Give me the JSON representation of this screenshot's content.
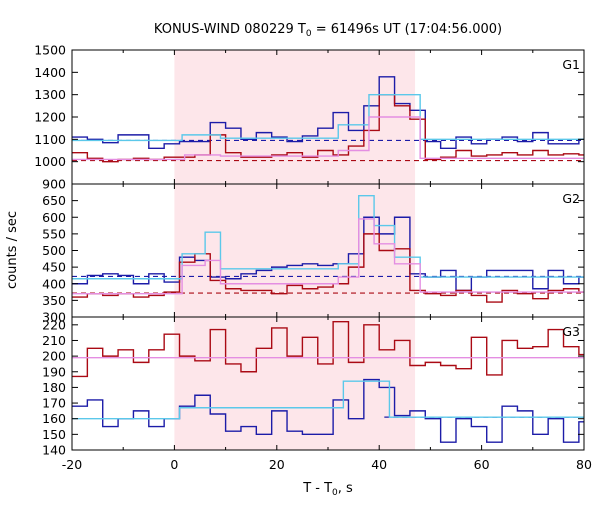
{
  "chart_data": {
    "type": "line",
    "title": "KONUS-WIND 080229 T",
    "title_sub": "0",
    "title_rest": " = 61496s UT (17:04:56.000)",
    "xlabel": "T - T",
    "xlabel_sub": "0",
    "xlabel_rest": ", s",
    "ylabel": "counts / sec",
    "xlim": [
      -20,
      80
    ],
    "xticks": [
      "-20",
      "0",
      "20",
      "40",
      "60",
      "80"
    ],
    "shaded_interval": [
      0,
      47
    ],
    "colors": {
      "series_a": "#1c1ca8",
      "series_b": "#aa0a14",
      "model_a": "#5bc8ea",
      "model_b": "#e48ee2",
      "background_a": "#1c1ca8",
      "background_b": "#aa0a14",
      "shade": "#fde6ea"
    },
    "panels": [
      {
        "label": "G1",
        "ylim": [
          900,
          1500
        ],
        "yticks": [
          900,
          1000,
          1100,
          1200,
          1300,
          1400,
          1500
        ],
        "series": [
          {
            "color_key": "series_a",
            "x": [
              -20,
              -17,
              -14,
              -11,
              -8,
              -5,
              -2,
              1,
              4,
              7,
              10,
              13,
              16,
              19,
              22,
              25,
              28,
              31,
              34,
              37,
              40,
              43,
              46,
              49,
              52,
              55,
              58,
              61,
              64,
              67,
              70,
              73,
              76,
              79,
              80
            ],
            "values": [
              1110,
              1100,
              1085,
              1120,
              1120,
              1060,
              1080,
              1090,
              1090,
              1175,
              1150,
              1100,
              1130,
              1110,
              1090,
              1115,
              1150,
              1220,
              1140,
              1250,
              1380,
              1260,
              1230,
              1090,
              1060,
              1110,
              1080,
              1100,
              1110,
              1090,
              1130,
              1080,
              1080,
              1100,
              1100
            ]
          },
          {
            "color_key": "series_b",
            "x": [
              -20,
              -17,
              -14,
              -11,
              -8,
              -5,
              -2,
              1,
              4,
              7,
              10,
              13,
              16,
              19,
              22,
              25,
              28,
              31,
              34,
              37,
              40,
              43,
              46,
              49,
              52,
              55,
              58,
              61,
              64,
              67,
              70,
              73,
              76,
              79,
              80
            ],
            "values": [
              1040,
              1015,
              1000,
              1010,
              1015,
              1010,
              1020,
              1020,
              1030,
              1120,
              1040,
              1020,
              1020,
              1030,
              1040,
              1020,
              1050,
              1030,
              1070,
              1140,
              1300,
              1250,
              1190,
              1010,
              1020,
              1050,
              1025,
              1030,
              1040,
              1030,
              1050,
              1030,
              1035,
              1030,
              1030
            ]
          },
          {
            "color_key": "model_a",
            "x": [
              -20,
              0.5,
              1.5,
              7,
              9,
              31,
              32,
              36,
              38,
              47,
              48,
              80
            ],
            "values": [
              1095,
              1095,
              1120,
              1120,
              1105,
              1105,
              1165,
              1165,
              1300,
              1300,
              1100,
              1100
            ]
          },
          {
            "color_key": "model_b",
            "x": [
              -20,
              0.5,
              2,
              7,
              9,
              31,
              32,
              36,
              38,
              47,
              48,
              80
            ],
            "values": [
              1010,
              1010,
              1030,
              1030,
              1025,
              1025,
              1050,
              1050,
              1200,
              1200,
              1015,
              1015
            ]
          }
        ],
        "backgrounds": [
          {
            "color_key": "background_a",
            "value": 1095,
            "x": [
              -20,
              80
            ]
          },
          {
            "color_key": "background_b",
            "value": 1005,
            "x": [
              -20,
              80
            ]
          }
        ]
      },
      {
        "label": "G2",
        "ylim": [
          300,
          700
        ],
        "yticks": [
          300,
          350,
          400,
          450,
          500,
          550,
          600,
          650
        ],
        "series": [
          {
            "color_key": "series_a",
            "x": [
              -20,
              -17,
              -14,
              -11,
              -8,
              -5,
              -2,
              1,
              4,
              7,
              10,
              13,
              16,
              19,
              22,
              25,
              28,
              31,
              34,
              37,
              40,
              43,
              46,
              49,
              52,
              55,
              58,
              61,
              64,
              67,
              70,
              73,
              76,
              79,
              80
            ],
            "values": [
              400,
              425,
              430,
              425,
              400,
              430,
              405,
              480,
              470,
              420,
              415,
              430,
              440,
              450,
              455,
              460,
              455,
              460,
              490,
              600,
              550,
              600,
              430,
              420,
              440,
              380,
              420,
              440,
              440,
              440,
              385,
              440,
              400,
              420,
              420
            ]
          },
          {
            "color_key": "series_b",
            "x": [
              -20,
              -17,
              -14,
              -11,
              -8,
              -5,
              -2,
              1,
              4,
              7,
              10,
              13,
              16,
              19,
              22,
              25,
              28,
              31,
              34,
              37,
              40,
              43,
              46,
              49,
              52,
              55,
              58,
              61,
              64,
              67,
              70,
              73,
              76,
              79,
              80
            ],
            "values": [
              360,
              370,
              365,
              370,
              360,
              365,
              375,
              465,
              490,
              410,
              385,
              380,
              380,
              370,
              395,
              385,
              390,
              400,
              450,
              550,
              500,
              505,
              380,
              370,
              365,
              380,
              365,
              345,
              380,
              370,
              355,
              380,
              385,
              375,
              375
            ]
          },
          {
            "color_key": "model_a",
            "x": [
              -20,
              0.5,
              1.5,
              6,
              9,
              31,
              32,
              35,
              36,
              38,
              39,
              42,
              43,
              47,
              48,
              80
            ],
            "values": [
              415,
              415,
              490,
              555,
              445,
              445,
              460,
              460,
              665,
              665,
              575,
              575,
              480,
              480,
              420,
              420
            ]
          },
          {
            "color_key": "model_b",
            "x": [
              -20,
              0.5,
              1.5,
              6,
              9,
              31,
              32,
              35,
              36,
              38,
              39,
              42,
              43,
              47,
              48,
              80
            ],
            "values": [
              370,
              370,
              455,
              470,
              400,
              400,
              420,
              420,
              595,
              595,
              520,
              520,
              460,
              460,
              375,
              375
            ]
          }
        ],
        "backgrounds": [
          {
            "color_key": "background_a",
            "value": 422,
            "x": [
              -20,
              80
            ]
          },
          {
            "color_key": "background_b",
            "value": 372,
            "x": [
              -20,
              80
            ]
          }
        ]
      },
      {
        "label": "G3",
        "ylim": [
          140,
          225
        ],
        "yticks": [
          140,
          150,
          160,
          170,
          180,
          190,
          200,
          210,
          220
        ],
        "series": [
          {
            "color_key": "series_a",
            "x": [
              -20,
              -17,
              -14,
              -11,
              -8,
              -5,
              -2,
              1,
              4,
              7,
              10,
              13,
              16,
              19,
              22,
              25,
              28,
              31,
              34,
              37,
              40,
              43,
              46,
              49,
              52,
              55,
              58,
              61,
              64,
              67,
              70,
              73,
              76,
              79,
              80
            ],
            "values": [
              168,
              172,
              155,
              160,
              165,
              155,
              160,
              168,
              175,
              163,
              152,
              155,
              150,
              165,
              152,
              150,
              150,
              172,
              160,
              185,
              180,
              162,
              165,
              160,
              145,
              160,
              155,
              145,
              168,
              165,
              150,
              160,
              145,
              158,
              158
            ]
          },
          {
            "color_key": "series_b",
            "x": [
              -20,
              -17,
              -14,
              -11,
              -8,
              -5,
              -2,
              1,
              4,
              7,
              10,
              13,
              16,
              19,
              22,
              25,
              28,
              31,
              34,
              37,
              40,
              43,
              46,
              49,
              52,
              55,
              58,
              61,
              64,
              67,
              70,
              73,
              76,
              79,
              80
            ],
            "values": [
              187,
              205,
              200,
              204,
              196,
              204,
              214,
              200,
              197,
              217,
              195,
              190,
              205,
              218,
              200,
              212,
              195,
              222,
              196,
              220,
              204,
              210,
              194,
              196,
              194,
              192,
              212,
              188,
              210,
              205,
              206,
              217,
              206,
              201,
              201
            ]
          },
          {
            "color_key": "model_a",
            "x": [
              -20,
              0.5,
              1,
              29,
              30,
              33,
              34,
              41,
              42,
              80
            ],
            "values": [
              160,
              160,
              167,
              167,
              167,
              184,
              184,
              184,
              161,
              161
            ]
          },
          {
            "color_key": "model_b",
            "x": [
              -20,
              80
            ],
            "values": [
              199,
              199
            ]
          }
        ],
        "backgrounds": [
          {
            "color_key": "background_a",
            "value": 161,
            "x": [
              41,
              80
            ]
          }
        ]
      }
    ]
  }
}
